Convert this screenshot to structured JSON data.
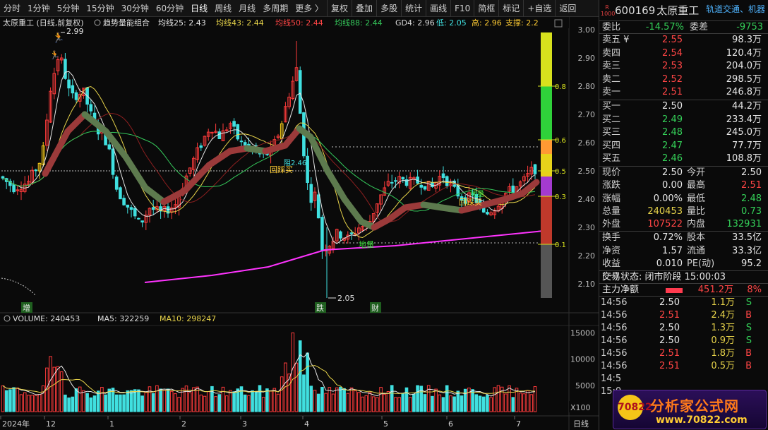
{
  "toolbar": {
    "items": [
      "分时",
      "1分钟",
      "5分钟",
      "15分钟",
      "30分钟",
      "60分钟",
      "日线",
      "周线",
      "月线",
      "多周期",
      "更多 〉"
    ],
    "active": "日线",
    "tools": [
      "复权",
      "叠加",
      "多股",
      "统计",
      "画线",
      "F10",
      "简框",
      "标记",
      "+自选",
      "返回"
    ]
  },
  "chart": {
    "info": {
      "stock_mode": "太原重工 (日线,前复权)",
      "indicator_combo": "趋势量能组合",
      "ma25": "均线25: 2.43",
      "ma43": "均线43: 2.44",
      "ma50": "均线50: 2.44",
      "ma88": "均线88: 2.44",
      "gd4": "GD4: 2.96",
      "low": "低: 2.05",
      "high": "高: 2.96",
      "support": "支撑: 2.2"
    },
    "annotations": {
      "high_label": "2.99",
      "low_label": "2.05",
      "pullback_buy_1": "回踩买",
      "pullback_buy_2": "回踩买",
      "pullback_buy_3": "回踩买",
      "dihliang_1": "地量",
      "dihliang_2": "地量",
      "tag_zeng": "增",
      "tag_die": "跌",
      "tag_cai": "财",
      "stop_label": "阻2.46"
    },
    "price_axis": [
      "3.00",
      "2.90",
      "2.80",
      "2.70",
      "2.60",
      "2.50",
      "2.40",
      "2.30",
      "2.20",
      "2.10"
    ],
    "gauge_levels": [
      "0.8",
      "0.6",
      "0.5",
      "0.3",
      "0.1"
    ],
    "volume_info": {
      "volume": "VOLUME: 240453",
      "ma5": "MA5: 322259",
      "ma10": "MA10: 298247"
    },
    "volume_axis": [
      "15000",
      "10000",
      "5000"
    ],
    "volume_unit": "X100",
    "date_axis": [
      "2024年",
      "12",
      "1",
      "2",
      "3",
      "4",
      "5",
      "6",
      "7"
    ],
    "period_label": "日线",
    "colors": {
      "up": "#ff3b3b",
      "down": "#40e0e0",
      "ma_green": "#35c95b",
      "ma_yellow": "#e8d44a",
      "ma_white": "#e6e6e6",
      "trend_up": "#9b3a3a",
      "trend_down": "#5d7a4e",
      "support_line": "#ff33ff"
    }
  },
  "quote": {
    "code": "600169",
    "name": "太原重工",
    "sector": "轨道交通、机器",
    "badge_top": "R",
    "badge_bottom": "1000",
    "weibi_label": "委比",
    "weibi": "-14.57%",
    "weicha_label": "委差",
    "weicha": "-9753",
    "asks": [
      {
        "label": "卖五 ¥",
        "price": "2.55",
        "vol": "98.3万"
      },
      {
        "label": "卖四",
        "price": "2.54",
        "vol": "120.4万"
      },
      {
        "label": "卖三",
        "price": "2.53",
        "vol": "204.0万"
      },
      {
        "label": "卖二",
        "price": "2.52",
        "vol": "298.5万"
      },
      {
        "label": "卖一",
        "price": "2.51",
        "vol": "246.8万"
      }
    ],
    "bids": [
      {
        "label": "买一",
        "price": "2.50",
        "vol": "44.2万"
      },
      {
        "label": "买二",
        "price": "2.49",
        "vol": "233.4万"
      },
      {
        "label": "买三",
        "price": "2.48",
        "vol": "245.0万"
      },
      {
        "label": "买四",
        "price": "2.47",
        "vol": "77.7万"
      },
      {
        "label": "买五",
        "price": "2.46",
        "vol": "108.8万"
      }
    ],
    "stats": [
      {
        "l1": "现价",
        "v1": "2.50",
        "c1": "white",
        "l2": "今开",
        "v2": "2.50",
        "c2": "white"
      },
      {
        "l1": "涨跌",
        "v1": "0.00",
        "c1": "white",
        "l2": "最高",
        "v2": "2.51",
        "c2": "red"
      },
      {
        "l1": "涨幅",
        "v1": "0.00%",
        "c1": "white",
        "l2": "最低",
        "v2": "2.48",
        "c2": "green"
      },
      {
        "l1": "总量",
        "v1": "240453",
        "c1": "yellow",
        "l2": "量比",
        "v2": "0.73",
        "c2": "green"
      },
      {
        "l1": "外盘",
        "v1": "107522",
        "c1": "red",
        "l2": "内盘",
        "v2": "132931",
        "c2": "green"
      }
    ],
    "stats2": [
      {
        "l1": "换手",
        "v1": "0.72%",
        "l2": "股本",
        "v2": "33.5亿"
      },
      {
        "l1": "净资",
        "v1": "1.57",
        "l2": "流通",
        "v2": "33.3亿"
      },
      {
        "l1": "收益(一)",
        "v1": "0.010",
        "l2": "PE(动)",
        "v2": "95.2"
      }
    ],
    "trade_status": "交易状态: 闭市阶段 15:00:03",
    "main_flow_label": "主力净额",
    "main_flow_value": "451.2万",
    "main_flow_pct": "8%",
    "ticks": [
      {
        "t": "14:56",
        "p": "2.50",
        "pc": "white",
        "v": "1.1万",
        "s": "S",
        "sc": "green"
      },
      {
        "t": "14:56",
        "p": "2.51",
        "pc": "red",
        "v": "2.4万",
        "s": "B",
        "sc": "red"
      },
      {
        "t": "14:56",
        "p": "2.50",
        "pc": "white",
        "v": "1.3万",
        "s": "S",
        "sc": "green"
      },
      {
        "t": "14:56",
        "p": "2.50",
        "pc": "white",
        "v": "0.9万",
        "s": "S",
        "sc": "green"
      },
      {
        "t": "14:56",
        "p": "2.51",
        "pc": "red",
        "v": "1.8万",
        "s": "B",
        "sc": "red"
      },
      {
        "t": "14:56",
        "p": "2.51",
        "pc": "red",
        "v": "0.5万",
        "s": "B",
        "sc": "red"
      },
      {
        "t": "14:5",
        "p": "",
        "pc": "white",
        "v": "",
        "s": "",
        "sc": "green"
      },
      {
        "t": "15:0",
        "p": "",
        "pc": "white",
        "v": "",
        "s": "",
        "sc": "green"
      }
    ]
  },
  "watermark": {
    "logo_text": "70822",
    "title": "分析家公式网",
    "url": "www.70822.com"
  }
}
